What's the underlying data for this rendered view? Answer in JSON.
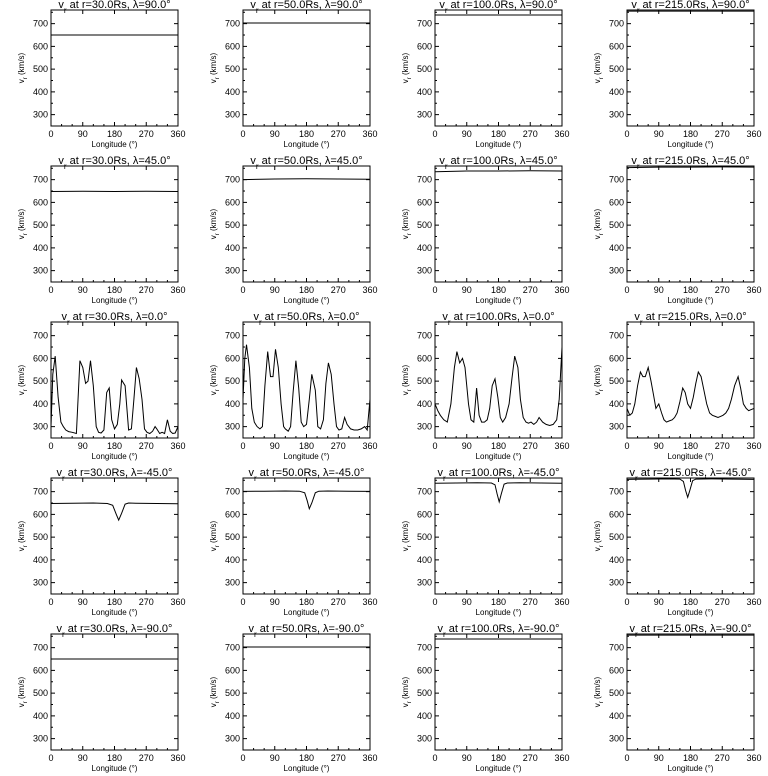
{
  "chart_data": {
    "type": "line",
    "rows": 5,
    "cols": 4,
    "xlim": [
      0,
      360
    ],
    "ylim": [
      250,
      760
    ],
    "xticks": [
      0,
      90,
      180,
      270,
      360
    ],
    "yticks": [
      300,
      400,
      500,
      600,
      700
    ],
    "xlabel": "Longitude (°)",
    "ylabel": "v_r (km/s)",
    "panels": [
      {
        "title": "v_r at r=30.0Rs, λ=90.0°",
        "x": [
          0,
          360
        ],
        "y": [
          650,
          650
        ]
      },
      {
        "title": "v_r at r=50.0Rs, λ=90.0°",
        "x": [
          0,
          360
        ],
        "y": [
          703,
          703
        ]
      },
      {
        "title": "v_r at r=100.0Rs, λ=90.0°",
        "x": [
          0,
          360
        ],
        "y": [
          738,
          738
        ]
      },
      {
        "title": "v_r at r=215.0Rs, λ=90.0°",
        "x": [
          0,
          360
        ],
        "y": [
          755,
          755
        ]
      },
      {
        "title": "v_r at r=30.0Rs, λ=45.0°",
        "x": [
          0,
          90,
          180,
          270,
          360
        ],
        "y": [
          648,
          649,
          648,
          649,
          648
        ]
      },
      {
        "title": "v_r at r=50.0Rs, λ=45.0°",
        "x": [
          0,
          90,
          180,
          270,
          360
        ],
        "y": [
          700,
          703,
          704,
          703,
          702
        ]
      },
      {
        "title": "v_r at r=100.0Rs, λ=45.0°",
        "x": [
          0,
          90,
          180,
          270,
          360
        ],
        "y": [
          735,
          738,
          738,
          739,
          738
        ]
      },
      {
        "title": "v_r at r=215.0Rs, λ=45.0°",
        "x": [
          0,
          90,
          180,
          270,
          360
        ],
        "y": [
          753,
          755,
          755,
          756,
          755
        ]
      },
      {
        "title": "v_r at r=30.0Rs, λ=0.0°",
        "x": [
          0,
          5,
          12,
          20,
          28,
          35,
          42,
          50,
          60,
          72,
          82,
          90,
          98,
          105,
          112,
          120,
          128,
          135,
          142,
          150,
          158,
          165,
          172,
          180,
          188,
          195,
          200,
          210,
          220,
          228,
          235,
          242,
          250,
          258,
          265,
          272,
          280,
          288,
          295,
          300,
          308,
          315,
          322,
          330,
          338,
          345,
          352,
          360
        ],
        "y": [
          300,
          530,
          610,
          430,
          320,
          300,
          285,
          278,
          275,
          270,
          590,
          560,
          490,
          500,
          590,
          480,
          300,
          275,
          272,
          285,
          450,
          470,
          330,
          290,
          310,
          400,
          505,
          480,
          285,
          290,
          420,
          560,
          510,
          420,
          290,
          275,
          270,
          280,
          300,
          290,
          270,
          275,
          270,
          330,
          280,
          270,
          272,
          300
        ]
      },
      {
        "title": "v_r at r=50.0Rs, λ=0.0°",
        "x": [
          0,
          5,
          10,
          18,
          25,
          32,
          40,
          48,
          55,
          62,
          70,
          78,
          85,
          92,
          100,
          108,
          115,
          120,
          128,
          135,
          142,
          150,
          158,
          165,
          172,
          180,
          188,
          195,
          205,
          212,
          220,
          228,
          235,
          242,
          250,
          258,
          265,
          272,
          280,
          288,
          295,
          305,
          315,
          325,
          335,
          345,
          352,
          360
        ],
        "y": [
          420,
          600,
          660,
          560,
          380,
          320,
          300,
          290,
          300,
          480,
          630,
          520,
          520,
          640,
          560,
          400,
          300,
          290,
          280,
          300,
          450,
          590,
          470,
          320,
          300,
          310,
          420,
          530,
          460,
          300,
          290,
          330,
          490,
          580,
          530,
          400,
          300,
          285,
          290,
          340,
          310,
          290,
          285,
          285,
          290,
          300,
          285,
          420
        ]
      },
      {
        "title": "v_r at r=100.0Rs, λ=0.0°",
        "x": [
          0,
          8,
          15,
          25,
          35,
          45,
          55,
          62,
          70,
          78,
          85,
          95,
          102,
          110,
          118,
          125,
          132,
          140,
          148,
          155,
          162,
          170,
          178,
          185,
          192,
          200,
          210,
          218,
          226,
          235,
          242,
          250,
          258,
          265,
          272,
          280,
          288,
          295,
          305,
          315,
          325,
          335,
          345,
          352,
          360
        ],
        "y": [
          400,
          370,
          350,
          330,
          320,
          400,
          560,
          630,
          580,
          600,
          560,
          400,
          330,
          320,
          470,
          350,
          320,
          320,
          330,
          380,
          480,
          510,
          430,
          340,
          320,
          340,
          400,
          510,
          610,
          560,
          420,
          340,
          320,
          315,
          320,
          310,
          320,
          340,
          320,
          310,
          305,
          310,
          330,
          420,
          650
        ]
      },
      {
        "title": "v_r at r=215.0Rs, λ=0.0°",
        "x": [
          0,
          8,
          15,
          22,
          30,
          38,
          45,
          52,
          60,
          68,
          75,
          82,
          90,
          98,
          105,
          112,
          120,
          128,
          135,
          142,
          150,
          158,
          165,
          172,
          180,
          188,
          195,
          202,
          210,
          218,
          226,
          234,
          242,
          250,
          258,
          265,
          272,
          280,
          288,
          296,
          305,
          315,
          322,
          330,
          338,
          345,
          352,
          360
        ],
        "y": [
          380,
          350,
          360,
          400,
          480,
          540,
          520,
          520,
          560,
          500,
          440,
          380,
          400,
          360,
          330,
          320,
          325,
          330,
          340,
          360,
          410,
          470,
          450,
          400,
          380,
          430,
          490,
          540,
          520,
          460,
          400,
          360,
          350,
          345,
          340,
          345,
          350,
          360,
          380,
          420,
          480,
          520,
          470,
          400,
          380,
          370,
          375,
          380
        ]
      },
      {
        "title": "v_r at r=30.0Rs, λ=-45.0°",
        "x": [
          0,
          60,
          120,
          160,
          175,
          185,
          192,
          200,
          210,
          220,
          240,
          300,
          360
        ],
        "y": [
          648,
          649,
          650,
          648,
          640,
          600,
          575,
          605,
          645,
          650,
          649,
          648,
          647
        ]
      },
      {
        "title": "v_r at r=50.0Rs, λ=-45.0°",
        "x": [
          0,
          60,
          120,
          160,
          175,
          182,
          188,
          195,
          205,
          215,
          240,
          300,
          360
        ],
        "y": [
          701,
          702,
          703,
          702,
          695,
          660,
          625,
          650,
          695,
          702,
          703,
          702,
          701
        ]
      },
      {
        "title": "v_r at r=100.0Rs, λ=-45.0°",
        "x": [
          0,
          60,
          120,
          160,
          170,
          176,
          182,
          188,
          196,
          205,
          240,
          300,
          360
        ],
        "y": [
          737,
          738,
          739,
          738,
          730,
          690,
          655,
          690,
          733,
          738,
          739,
          738,
          737
        ]
      },
      {
        "title": "v_r at r=215.0Rs, λ=-45.0°",
        "x": [
          0,
          60,
          120,
          150,
          160,
          166,
          172,
          178,
          186,
          195,
          240,
          300,
          360
        ],
        "y": [
          754,
          755,
          756,
          755,
          745,
          705,
          675,
          705,
          748,
          755,
          756,
          755,
          754
        ]
      },
      {
        "title": "v_r at r=30.0Rs, λ=-90.0°",
        "x": [
          0,
          360
        ],
        "y": [
          650,
          650
        ]
      },
      {
        "title": "v_r at r=50.0Rs, λ=-90.0°",
        "x": [
          0,
          360
        ],
        "y": [
          703,
          703
        ]
      },
      {
        "title": "v_r at r=100.0Rs, λ=-90.0°",
        "x": [
          0,
          360
        ],
        "y": [
          738,
          738
        ]
      },
      {
        "title": "v_r at r=215.0Rs, λ=-90.0°",
        "x": [
          0,
          360
        ],
        "y": [
          755,
          755
        ]
      }
    ]
  }
}
